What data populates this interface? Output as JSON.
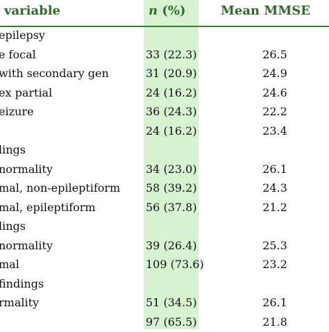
{
  "header": {
    "variable": "variable",
    "n_label": "n",
    "n_pct": " (%)",
    "mmse": "Mean MMSE"
  },
  "rows": [
    {
      "variable": "epilepsy",
      "n": "",
      "mmse": ""
    },
    {
      "variable": "e focal",
      "n": "33 (22.3)",
      "mmse": "26.5"
    },
    {
      "variable": "with secondary gen",
      "n": "31 (20.9)",
      "mmse": "24.9"
    },
    {
      "variable": "ex partial",
      "n": "24 (16.2)",
      "mmse": "24.6"
    },
    {
      "variable": "eizure",
      "n": "36 (24.3)",
      "mmse": "22.2"
    },
    {
      "variable": "",
      "n": "24 (16.2)",
      "mmse": "23.4"
    },
    {
      "variable": "lings",
      "n": "",
      "mmse": ""
    },
    {
      "variable": "normality",
      "n": "34 (23.0)",
      "mmse": "26.1"
    },
    {
      "variable": "mal, non-epileptiform",
      "n": "58 (39.2)",
      "mmse": "24.3"
    },
    {
      "variable": "mal, epileptiform",
      "n": "56 (37.8)",
      "mmse": "21.2"
    },
    {
      "variable": "lings",
      "n": "",
      "mmse": ""
    },
    {
      "variable": "normality",
      "n": "39 (26.4)",
      "mmse": "25.3"
    },
    {
      "variable": "mal",
      "n": "109 (73.6)",
      "mmse": "23.2"
    },
    {
      "variable": "findings",
      "n": "",
      "mmse": ""
    },
    {
      "variable": "rmality",
      "n": "51 (34.5)",
      "mmse": "26.1"
    },
    {
      "variable": "",
      "n": "97 (65.5)",
      "mmse": "21.8"
    }
  ]
}
